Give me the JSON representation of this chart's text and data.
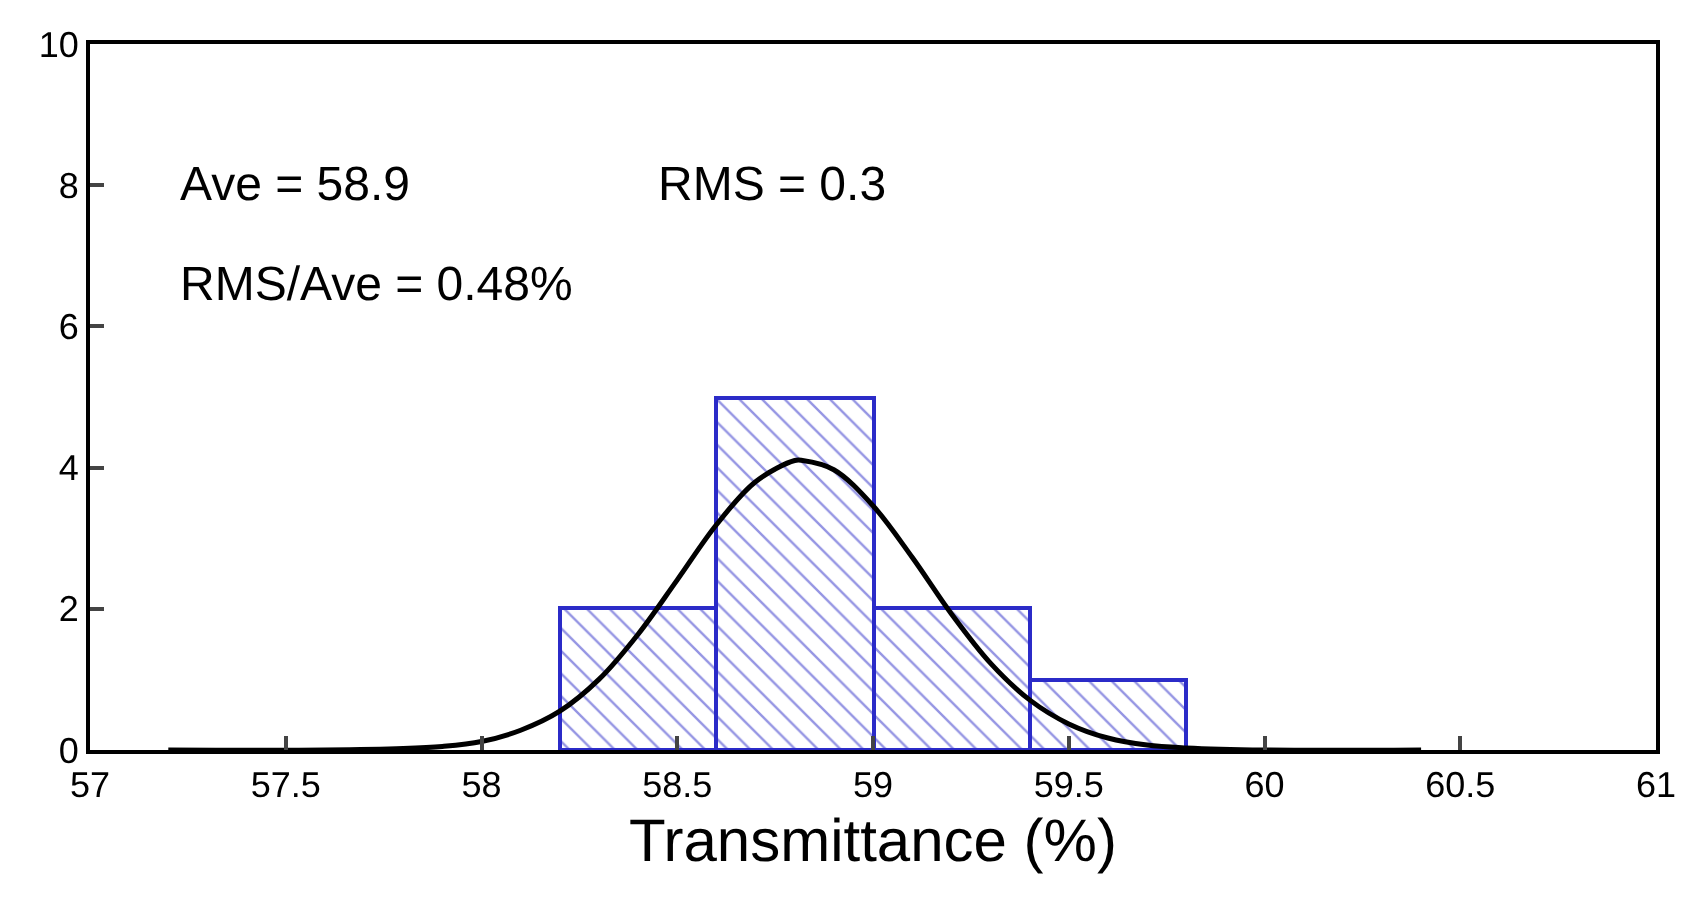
{
  "chart_data": {
    "type": "histogram",
    "xlabel": "Transmittance (%)",
    "bins": [
      58.2,
      58.6,
      59.0,
      59.4,
      59.8
    ],
    "values": [
      2,
      5,
      2,
      1
    ],
    "color": "#2b2bc8",
    "series": [
      {
        "type": "line",
        "color": "#000000",
        "x": [
          57.2,
          57.6,
          57.8,
          57.9,
          58.0,
          58.1,
          58.2,
          58.3,
          58.4,
          58.5,
          58.6,
          58.7,
          58.8,
          58.82,
          58.9,
          59.0,
          59.1,
          59.2,
          59.3,
          59.4,
          59.5,
          59.6,
          59.7,
          59.8,
          60.0,
          60.4
        ],
        "values": [
          0,
          0,
          0.02,
          0.05,
          0.12,
          0.28,
          0.55,
          1.0,
          1.64,
          2.41,
          3.19,
          3.8,
          4.1,
          4.1,
          3.97,
          3.46,
          2.73,
          1.93,
          1.23,
          0.71,
          0.37,
          0.17,
          0.07,
          0.03,
          0,
          0
        ]
      }
    ],
    "xlim": [
      57,
      61
    ],
    "xticks": [
      57,
      57.5,
      58,
      58.5,
      59,
      59.5,
      60,
      60.5,
      61
    ],
    "ylim": [
      0,
      10
    ],
    "yticks": [
      0,
      2,
      4,
      6,
      8,
      10
    ],
    "annotations": [
      "Ave = 58.9",
      "RMS = 0.3",
      "RMS/Ave = 0.48%"
    ]
  }
}
